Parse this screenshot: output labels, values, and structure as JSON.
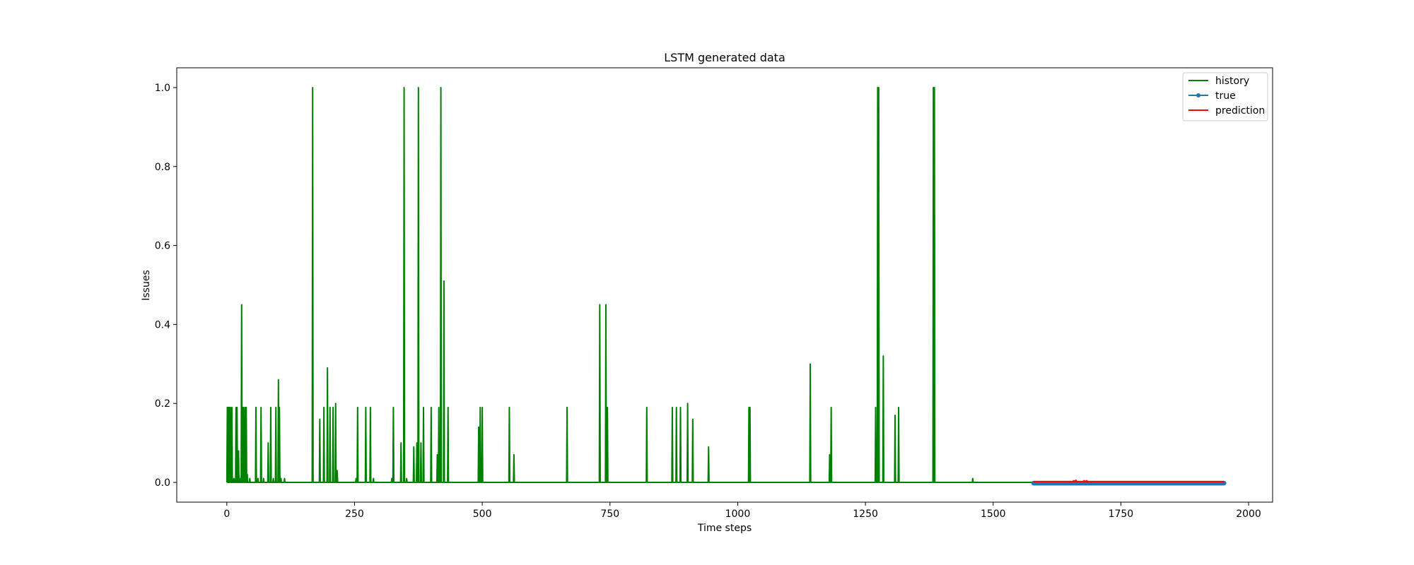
{
  "chart_data": {
    "type": "line",
    "title": "LSTM generated data",
    "xlabel": "Time steps",
    "ylabel": "Issues",
    "xlim": [
      -98,
      2047
    ],
    "ylim": [
      -0.05,
      1.05
    ],
    "xticks": [
      0,
      250,
      500,
      750,
      1000,
      1250,
      1500,
      1750,
      2000
    ],
    "xtick_labels": [
      "0",
      "250",
      "500",
      "750",
      "1000",
      "1250",
      "1500",
      "1750",
      "2000"
    ],
    "yticks": [
      0.0,
      0.2,
      0.4,
      0.6,
      0.8,
      1.0
    ],
    "ytick_labels": [
      "0.0",
      "0.2",
      "0.4",
      "0.6",
      "0.8",
      "1.0"
    ],
    "grid": false,
    "legend": {
      "location": "upper right",
      "entries": [
        "history",
        "true",
        "prediction"
      ]
    },
    "series": [
      {
        "name": "history",
        "color": "#008000",
        "baseline": 0.0,
        "x_range": [
          0,
          1578
        ],
        "spikes": [
          [
            1,
            0.19
          ],
          [
            3,
            0.19
          ],
          [
            5,
            0.19
          ],
          [
            7,
            0.19
          ],
          [
            10,
            0.19
          ],
          [
            14,
            0.01
          ],
          [
            18,
            0.19
          ],
          [
            20,
            0.19
          ],
          [
            23,
            0.08
          ],
          [
            26,
            0.01
          ],
          [
            29,
            0.45
          ],
          [
            31,
            0.19
          ],
          [
            33,
            0.19
          ],
          [
            36,
            0.19
          ],
          [
            38,
            0.19
          ],
          [
            40,
            0.02
          ],
          [
            45,
            0.01
          ],
          [
            57,
            0.19
          ],
          [
            61,
            0.01
          ],
          [
            67,
            0.19
          ],
          [
            72,
            0.01
          ],
          [
            81,
            0.1
          ],
          [
            86,
            0.19
          ],
          [
            91,
            0.01
          ],
          [
            96,
            0.19
          ],
          [
            101,
            0.26
          ],
          [
            103,
            0.19
          ],
          [
            106,
            0.01
          ],
          [
            113,
            0.01
          ],
          [
            168,
            1.0
          ],
          [
            182,
            0.16
          ],
          [
            190,
            0.19
          ],
          [
            197,
            0.29
          ],
          [
            202,
            0.19
          ],
          [
            208,
            0.19
          ],
          [
            213,
            0.2
          ],
          [
            216,
            0.03
          ],
          [
            253,
            0.01
          ],
          [
            256,
            0.19
          ],
          [
            272,
            0.19
          ],
          [
            281,
            0.19
          ],
          [
            287,
            0.01
          ],
          [
            323,
            0.01
          ],
          [
            326,
            0.19
          ],
          [
            341,
            0.1
          ],
          [
            347,
            1.0
          ],
          [
            352,
            0.01
          ],
          [
            366,
            0.09
          ],
          [
            372,
            0.1
          ],
          [
            375,
            1.0
          ],
          [
            380,
            0.1
          ],
          [
            385,
            0.19
          ],
          [
            400,
            0.19
          ],
          [
            412,
            0.07
          ],
          [
            415,
            0.19
          ],
          [
            419,
            1.0
          ],
          [
            425,
            0.51
          ],
          [
            433,
            0.19
          ],
          [
            493,
            0.14
          ],
          [
            496,
            0.19
          ],
          [
            500,
            0.19
          ],
          [
            553,
            0.19
          ],
          [
            562,
            0.07
          ],
          [
            666,
            0.19
          ],
          [
            730,
            0.45
          ],
          [
            742,
            0.45
          ],
          [
            745,
            0.19
          ],
          [
            822,
            0.19
          ],
          [
            872,
            0.19
          ],
          [
            880,
            0.19
          ],
          [
            888,
            0.19
          ],
          [
            902,
            0.2
          ],
          [
            912,
            0.16
          ],
          [
            943,
            0.09
          ],
          [
            1022,
            0.19
          ],
          [
            1024,
            0.19
          ],
          [
            1142,
            0.3
          ],
          [
            1180,
            0.07
          ],
          [
            1183,
            0.19
          ],
          [
            1270,
            0.19
          ],
          [
            1274,
            1.0
          ],
          [
            1276,
            1.0
          ],
          [
            1285,
            0.32
          ],
          [
            1308,
            0.17
          ],
          [
            1315,
            0.19
          ],
          [
            1383,
            1.0
          ],
          [
            1385,
            1.0
          ],
          [
            1460,
            0.01
          ]
        ]
      },
      {
        "name": "true",
        "color": "#1f77b4",
        "marker": "o",
        "x_range": [
          1579,
          1952
        ],
        "value": 0.0
      },
      {
        "name": "prediction",
        "color": "#ff0000",
        "x_range": [
          1579,
          1952
        ],
        "value": 0.002,
        "bumps": [
          [
            1658,
            0.004
          ],
          [
            1662,
            0.005
          ],
          [
            1678,
            0.004
          ],
          [
            1683,
            0.004
          ]
        ]
      }
    ]
  }
}
